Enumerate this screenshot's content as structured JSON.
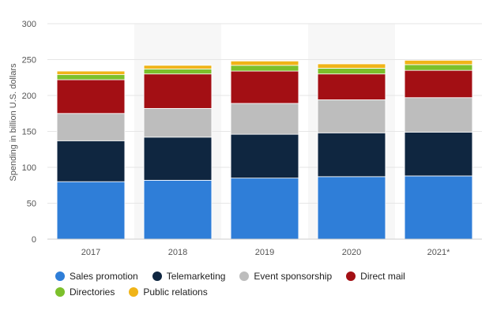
{
  "chart_data": {
    "type": "bar",
    "stacked": true,
    "categories": [
      "2017",
      "2018",
      "2019",
      "2020",
      "2021*"
    ],
    "ylabel": "Spending in billion U.S. dollars",
    "xlabel": "",
    "ylim": [
      0,
      300
    ],
    "yticks": [
      "0",
      "50",
      "100",
      "150",
      "200",
      "250",
      "300"
    ],
    "grid": true,
    "legend_position": "bottom",
    "series": [
      {
        "name": "Sales promotion",
        "color": "#2f7ed8",
        "values": [
          80,
          82,
          85,
          87,
          88
        ]
      },
      {
        "name": "Telemarketing",
        "color": "#0f2640",
        "values": [
          57,
          60,
          61,
          61,
          61
        ]
      },
      {
        "name": "Event sponsorship",
        "color": "#bdbdbd",
        "values": [
          38,
          40,
          43,
          46,
          48
        ]
      },
      {
        "name": "Direct mail",
        "color": "#a30f14",
        "values": [
          47,
          48,
          45,
          36,
          38
        ]
      },
      {
        "name": "Directories",
        "color": "#7cc02b",
        "values": [
          7,
          7,
          8,
          8,
          8
        ]
      },
      {
        "name": "Public relations",
        "color": "#f0b418",
        "values": [
          5,
          5,
          6,
          6,
          6
        ]
      }
    ]
  }
}
